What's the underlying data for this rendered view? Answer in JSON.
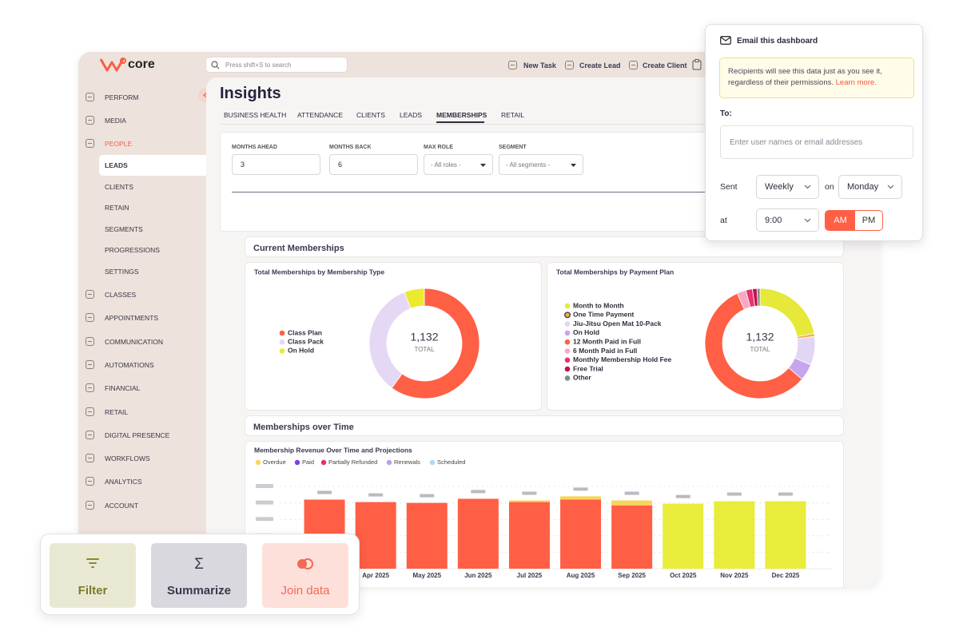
{
  "header": {
    "logo": "core",
    "search_placeholder": "Press shift+S to search",
    "actions": [
      "New Task",
      "Create Lead",
      "Create Client"
    ]
  },
  "nav": {
    "items": [
      "PERFORM",
      "MEDIA",
      "PEOPLE",
      "LEADS",
      "CLIENTS",
      "RETAIN",
      "SEGMENTS",
      "PROGRESSIONS",
      "SETTINGS",
      "CLASSES",
      "APPOINTMENTS",
      "COMMUNICATION",
      "AUTOMATIONS",
      "FINANCIAL",
      "RETAIL",
      "DIGITAL PRESENCE",
      "WORKFLOWS",
      "ANALYTICS",
      "ACCOUNT"
    ]
  },
  "page": {
    "title": "Insights",
    "tabs": [
      "BUSINESS HEALTH",
      "ATTENDANCE",
      "CLIENTS",
      "LEADS",
      "MEMBERSHIPS",
      "RETAIL"
    ],
    "filters": [
      {
        "label": "MONTHS AHEAD",
        "value": "3"
      },
      {
        "label": "MONTHS BACK",
        "value": "6"
      },
      {
        "label": "MAX ROLE",
        "value": "- All roles -"
      },
      {
        "label": "SEGMENT",
        "value": "- All segments -"
      }
    ],
    "sections": [
      "Current Memberships",
      "Memberships over Time"
    ]
  },
  "chart_data": [
    {
      "type": "donut",
      "title": "Total Memberships by Membership Type",
      "categories": [
        "Class Plan",
        "Class Pack",
        "On Hold"
      ],
      "values": [
        680,
        385,
        67
      ],
      "colors": [
        "#ff5f45",
        "#e4d8f5",
        "#ecea2f"
      ],
      "center_value": "1,132",
      "center_label": "TOTAL"
    },
    {
      "type": "donut",
      "title": "Total Memberships by Payment Plan",
      "categories": [
        "Month to Month",
        "One Time Payment",
        "Jiu-Jitsu Open Mat 10-Pack",
        "On Hold",
        "12 Month Paid in Full",
        "6 Month Paid in Full",
        "Monthly Membership Hold Fee",
        "Free Trial",
        "Other"
      ],
      "values": [
        250,
        10,
        95,
        55,
        645,
        30,
        22,
        15,
        10
      ],
      "colors": [
        "#e6e83a",
        "#f6b24a",
        "#e2d6f5",
        "#c6a4ee",
        "#ff5f45",
        "#f7a8c4",
        "#e8336b",
        "#c4124f",
        "#7f8c8d"
      ],
      "center_value": "1,132",
      "center_label": "TOTAL"
    },
    {
      "type": "bar",
      "stacked": true,
      "title": "Membership Revenue Over Time and Projections",
      "categories": [
        null,
        "Apr 2025",
        "May 2025",
        "Jun 2025",
        "Jul 2025",
        "Aug 2025",
        "Sep 2025",
        "Oct 2025",
        "Nov 2025",
        "Dec 2025"
      ],
      "series": [
        {
          "name": null,
          "color": "#ff5f45",
          "values": [
            84,
            81,
            80,
            85,
            81,
            84,
            77,
            null,
            null,
            null
          ]
        },
        {
          "name": null,
          "color": "#e9ec3a",
          "values": [
            null,
            null,
            null,
            null,
            null,
            null,
            null,
            79,
            82,
            82
          ]
        },
        {
          "name": "Overdue",
          "color": "#f8d55b",
          "values": [
            null,
            null,
            null,
            null,
            2,
            4,
            6,
            null,
            null,
            null
          ]
        },
        {
          "name": "Paid",
          "color": "#7d3fe3",
          "values": [
            null,
            null,
            null,
            null,
            null,
            null,
            null,
            null,
            null,
            null
          ]
        },
        {
          "name": "Partially Refunded",
          "color": "#e52e6b",
          "values": [
            null,
            null,
            null,
            null,
            null,
            null,
            null,
            null,
            null,
            null
          ]
        },
        {
          "name": "Renewals",
          "color": "#c09cf3",
          "values": [
            null,
            null,
            null,
            null,
            null,
            null,
            null,
            null,
            null,
            null
          ]
        },
        {
          "name": "Scheduled",
          "color": "#a9dbf3",
          "values": [
            null,
            null,
            null,
            null,
            null,
            null,
            null,
            null,
            null,
            null
          ]
        }
      ],
      "ylim": [
        0,
        100
      ],
      "yticks": [
        0,
        20,
        40,
        60,
        80,
        100
      ],
      "grid": true
    }
  ],
  "email_dialog": {
    "title": "Email this dashboard",
    "notice": "Recipients will see this data just as you see it, regardless of their permissions.",
    "notice_link": "Learn more.",
    "to_label": "To:",
    "to_placeholder": "Enter user names or email addresses",
    "sent_label": "Sent",
    "frequency": "Weekly",
    "on_label": "on",
    "day": "Monday",
    "at_label": "at",
    "time": "9:00",
    "meridiem": [
      "AM",
      "PM"
    ]
  },
  "toolbar": {
    "buttons": [
      "Filter",
      "Summarize",
      "Join data"
    ]
  }
}
